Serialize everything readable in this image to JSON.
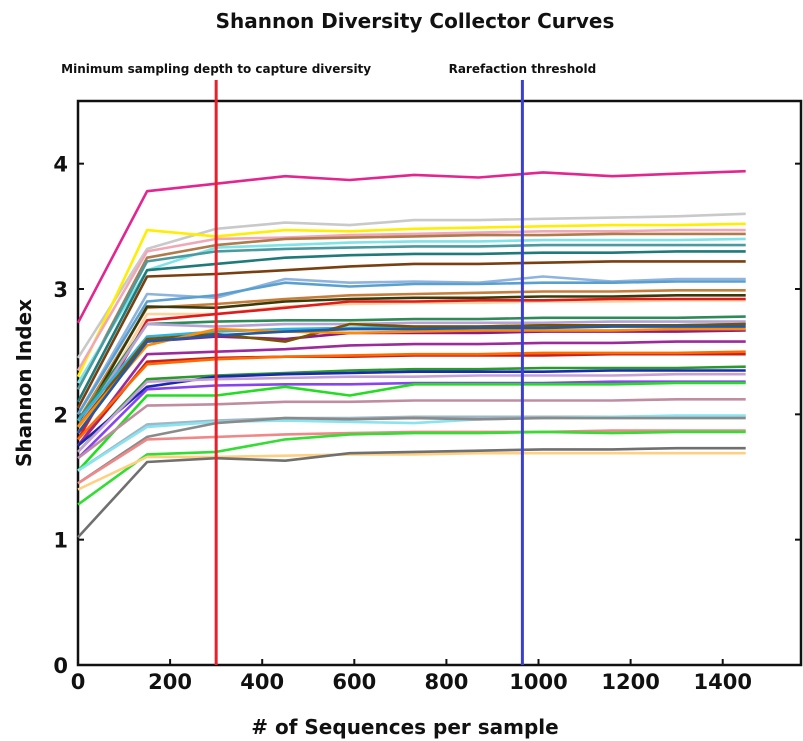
{
  "chart_data": {
    "type": "line",
    "title": "Shannon Diversity Collector Curves",
    "xlabel": "# of Sequences per sample",
    "ylabel": "Shannon Index",
    "xlim": [
      0,
      1570
    ],
    "ylim": [
      0,
      4.5
    ],
    "x_ticks": [
      0,
      200,
      400,
      600,
      800,
      1000,
      1200,
      1400
    ],
    "y_ticks": [
      0,
      1,
      2,
      3,
      4
    ],
    "x_tick_labels": [
      "0",
      "200",
      "400",
      "600",
      "800",
      "1000",
      "1200",
      "1400"
    ],
    "y_tick_labels": [
      "0",
      "1",
      "2",
      "3",
      "4"
    ],
    "grid": false,
    "legend": "none",
    "x": [
      0,
      150,
      300,
      450,
      590,
      730,
      870,
      1010,
      1160,
      1300,
      1450
    ],
    "reference_lines": [
      {
        "label": "Minimum sampling depth to capture diversity",
        "x": 300,
        "color": "#e8202a"
      },
      {
        "label": "Rarefaction threshold",
        "x": 965,
        "color": "#3b3fd1"
      }
    ],
    "series": [
      {
        "color": "#e3258f",
        "values": [
          2.73,
          3.78,
          3.84,
          3.9,
          3.87,
          3.91,
          3.89,
          3.93,
          3.9,
          3.92,
          3.94
        ]
      },
      {
        "color": "#c9c9c9",
        "values": [
          2.45,
          3.32,
          3.48,
          3.53,
          3.51,
          3.55,
          3.55,
          3.56,
          3.57,
          3.58,
          3.6
        ]
      },
      {
        "color": "#ffee00",
        "values": [
          2.3,
          3.47,
          3.42,
          3.47,
          3.46,
          3.48,
          3.49,
          3.5,
          3.51,
          3.51,
          3.52
        ]
      },
      {
        "color": "#f0a8b8",
        "values": [
          2.35,
          3.3,
          3.4,
          3.41,
          3.43,
          3.44,
          3.45,
          3.46,
          3.46,
          3.47,
          3.47
        ]
      },
      {
        "color": "#b07a4a",
        "values": [
          2.2,
          3.25,
          3.35,
          3.4,
          3.41,
          3.42,
          3.43,
          3.43,
          3.44,
          3.44,
          3.44
        ]
      },
      {
        "color": "#7fe3e8",
        "values": [
          2.25,
          3.15,
          3.33,
          3.35,
          3.37,
          3.38,
          3.38,
          3.39,
          3.39,
          3.39,
          3.4
        ]
      },
      {
        "color": "#4a9aa0",
        "values": [
          2.2,
          3.22,
          3.3,
          3.32,
          3.33,
          3.34,
          3.34,
          3.35,
          3.35,
          3.35,
          3.35
        ]
      },
      {
        "color": "#1f7a7a",
        "values": [
          2.1,
          3.15,
          3.2,
          3.25,
          3.27,
          3.28,
          3.28,
          3.29,
          3.29,
          3.3,
          3.3
        ]
      },
      {
        "color": "#7a3f10",
        "values": [
          2.05,
          3.1,
          3.12,
          3.15,
          3.18,
          3.2,
          3.2,
          3.21,
          3.22,
          3.22,
          3.22
        ]
      },
      {
        "color": "#8fb3df",
        "values": [
          2.0,
          2.96,
          2.93,
          3.08,
          3.05,
          3.06,
          3.05,
          3.1,
          3.06,
          3.08,
          3.08
        ]
      },
      {
        "color": "#5aa0cf",
        "values": [
          2.0,
          2.9,
          2.95,
          3.05,
          3.02,
          3.04,
          3.04,
          3.05,
          3.05,
          3.06,
          3.06
        ]
      },
      {
        "color": "#c77d3a",
        "values": [
          1.95,
          2.85,
          2.88,
          2.92,
          2.95,
          2.96,
          2.97,
          2.98,
          2.98,
          2.99,
          2.99
        ]
      },
      {
        "color": "#3d3a0a",
        "values": [
          1.9,
          2.86,
          2.85,
          2.9,
          2.92,
          2.93,
          2.93,
          2.94,
          2.94,
          2.95,
          2.95
        ]
      },
      {
        "color": "#ffd3a0",
        "values": [
          1.85,
          2.8,
          2.8,
          2.86,
          2.88,
          2.89,
          2.89,
          2.9,
          2.9,
          2.91,
          2.91
        ]
      },
      {
        "color": "#e01b1b",
        "values": [
          1.8,
          2.75,
          2.8,
          2.85,
          2.9,
          2.9,
          2.91,
          2.91,
          2.92,
          2.92,
          2.92
        ]
      },
      {
        "color": "#2e8b57",
        "values": [
          1.95,
          2.72,
          2.74,
          2.75,
          2.75,
          2.76,
          2.76,
          2.77,
          2.77,
          2.77,
          2.78
        ]
      },
      {
        "color": "#b6a2d6",
        "values": [
          1.9,
          2.72,
          2.7,
          2.72,
          2.72,
          2.73,
          2.73,
          2.73,
          2.74,
          2.74,
          2.74
        ]
      },
      {
        "color": "#2fb3e0",
        "values": [
          1.95,
          2.62,
          2.66,
          2.68,
          2.69,
          2.7,
          2.7,
          2.71,
          2.71,
          2.71,
          2.72
        ]
      },
      {
        "color": "#8b1a8b",
        "values": [
          1.85,
          2.58,
          2.62,
          2.6,
          2.65,
          2.65,
          2.65,
          2.66,
          2.66,
          2.66,
          2.67
        ]
      },
      {
        "color": "#7a5200",
        "values": [
          1.9,
          2.6,
          2.64,
          2.58,
          2.72,
          2.7,
          2.7,
          2.71,
          2.71,
          2.71,
          2.72
        ]
      },
      {
        "color": "#ff8c00",
        "values": [
          1.9,
          2.55,
          2.68,
          2.66,
          2.65,
          2.66,
          2.67,
          2.67,
          2.67,
          2.68,
          2.68
        ]
      },
      {
        "color": "#1e5aa8",
        "values": [
          1.85,
          2.58,
          2.63,
          2.66,
          2.68,
          2.68,
          2.69,
          2.69,
          2.7,
          2.7,
          2.7
        ]
      },
      {
        "color": "#c81e1e",
        "values": [
          1.75,
          2.42,
          2.45,
          2.46,
          2.46,
          2.47,
          2.47,
          2.47,
          2.48,
          2.48,
          2.48
        ]
      },
      {
        "color": "#9b2a9b",
        "values": [
          1.75,
          2.48,
          2.5,
          2.52,
          2.55,
          2.56,
          2.56,
          2.57,
          2.57,
          2.58,
          2.58
        ]
      },
      {
        "color": "#ff6a00",
        "values": [
          1.8,
          2.4,
          2.44,
          2.46,
          2.47,
          2.48,
          2.48,
          2.49,
          2.49,
          2.49,
          2.5
        ]
      },
      {
        "color": "#2a9a2a",
        "values": [
          1.7,
          2.28,
          2.31,
          2.33,
          2.35,
          2.36,
          2.36,
          2.37,
          2.37,
          2.37,
          2.38
        ]
      },
      {
        "color": "#1a2ab0",
        "values": [
          1.75,
          2.22,
          2.3,
          2.32,
          2.33,
          2.34,
          2.34,
          2.34,
          2.35,
          2.35,
          2.35
        ]
      },
      {
        "color": "#c8a0d8",
        "values": [
          1.7,
          2.26,
          2.28,
          2.29,
          2.3,
          2.3,
          2.31,
          2.31,
          2.31,
          2.32,
          2.32
        ]
      },
      {
        "color": "#8844ee",
        "values": [
          1.65,
          2.2,
          2.23,
          2.24,
          2.24,
          2.25,
          2.25,
          2.25,
          2.26,
          2.26,
          2.26
        ]
      },
      {
        "color": "#22dd22",
        "values": [
          1.55,
          2.15,
          2.15,
          2.22,
          2.15,
          2.24,
          2.24,
          2.24,
          2.24,
          2.25,
          2.25
        ]
      },
      {
        "color": "#c08da0",
        "values": [
          1.65,
          2.07,
          2.08,
          2.1,
          2.1,
          2.11,
          2.11,
          2.11,
          2.11,
          2.12,
          2.12
        ]
      },
      {
        "color": "#9fb7c7",
        "values": [
          1.55,
          1.92,
          1.95,
          1.97,
          1.97,
          1.98,
          1.98,
          1.98,
          1.98,
          1.98,
          1.98
        ]
      },
      {
        "color": "#89e3f0",
        "values": [
          1.55,
          1.9,
          1.94,
          1.95,
          1.94,
          1.93,
          1.96,
          1.97,
          1.98,
          1.99,
          1.99
        ]
      },
      {
        "color": "#8a8a8a",
        "values": [
          1.45,
          1.82,
          1.93,
          1.97,
          1.96,
          1.97,
          1.96,
          1.97,
          1.97,
          1.97,
          1.97
        ]
      },
      {
        "color": "#f08888",
        "values": [
          1.45,
          1.8,
          1.82,
          1.84,
          1.85,
          1.86,
          1.86,
          1.86,
          1.87,
          1.87,
          1.87
        ]
      },
      {
        "color": "#33dd33",
        "values": [
          1.28,
          1.68,
          1.7,
          1.8,
          1.84,
          1.85,
          1.85,
          1.86,
          1.85,
          1.86,
          1.86
        ]
      },
      {
        "color": "#ffd080",
        "values": [
          1.4,
          1.66,
          1.66,
          1.67,
          1.68,
          1.68,
          1.69,
          1.69,
          1.69,
          1.69,
          1.69
        ]
      },
      {
        "color": "#707070",
        "values": [
          1.02,
          1.62,
          1.65,
          1.63,
          1.69,
          1.7,
          1.71,
          1.72,
          1.72,
          1.73,
          1.73
        ]
      }
    ]
  }
}
